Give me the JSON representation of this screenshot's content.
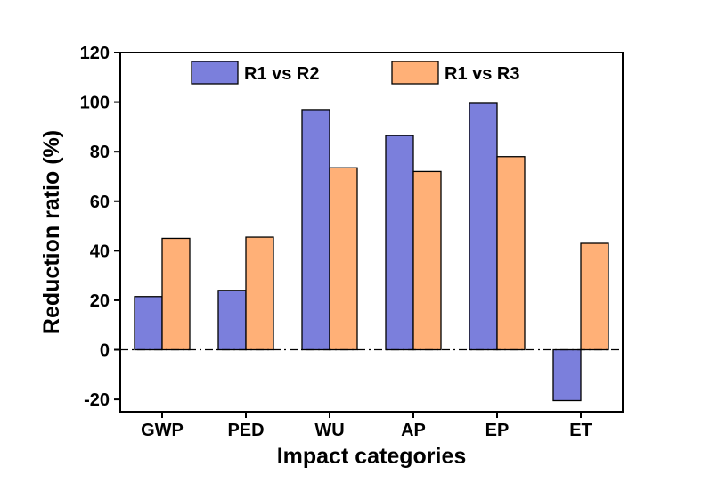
{
  "chart_data": {
    "type": "bar",
    "title": "",
    "xlabel": "Impact categories",
    "ylabel": "Reduction ratio (%)",
    "ylim": [
      -25,
      120
    ],
    "yticks": [
      120,
      100,
      80,
      60,
      40,
      20,
      0,
      -20
    ],
    "ytick_labels": [
      "120",
      "100",
      "80",
      "60",
      "40",
      "20",
      "0",
      "-20"
    ],
    "categories": [
      "GWP",
      "PED",
      "WU",
      "AP",
      "EP",
      "ET"
    ],
    "grid": false,
    "zero_line": "dash-dot",
    "legend_position": "top",
    "series": [
      {
        "name": "R1 vs R2",
        "color": "#7b7fdc",
        "values": [
          21.5,
          24,
          97,
          86.5,
          99.5,
          -20.5
        ]
      },
      {
        "name": "R1 vs R3",
        "color": "#ffb077",
        "values": [
          45,
          45.5,
          73.5,
          72,
          78,
          43
        ]
      }
    ]
  }
}
